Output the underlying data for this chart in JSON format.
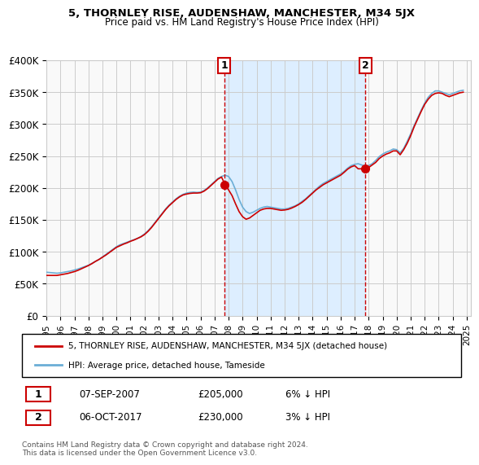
{
  "title": "5, THORNLEY RISE, AUDENSHAW, MANCHESTER, M34 5JX",
  "subtitle": "Price paid vs. HM Land Registry's House Price Index (HPI)",
  "xlabel": "",
  "ylabel": "",
  "ylim": [
    0,
    400000
  ],
  "yticks": [
    0,
    50000,
    100000,
    150000,
    200000,
    250000,
    300000,
    350000,
    400000
  ],
  "ytick_labels": [
    "£0",
    "£50K",
    "£100K",
    "£150K",
    "£200K",
    "£250K",
    "£300K",
    "£350K",
    "£400K"
  ],
  "xlim_start": 1995.0,
  "xlim_end": 2025.3,
  "xtick_years": [
    1995,
    1996,
    1997,
    1998,
    1999,
    2000,
    2001,
    2002,
    2003,
    2004,
    2005,
    2006,
    2007,
    2008,
    2009,
    2010,
    2011,
    2012,
    2013,
    2014,
    2015,
    2016,
    2017,
    2018,
    2019,
    2020,
    2021,
    2022,
    2023,
    2024,
    2025
  ],
  "sale1_x": 2007.68,
  "sale1_y": 205000,
  "sale1_label": "1",
  "sale1_date": "07-SEP-2007",
  "sale1_price": "£205,000",
  "sale1_hpi": "6% ↓ HPI",
  "sale2_x": 2017.76,
  "sale2_y": 230000,
  "sale2_label": "2",
  "sale2_date": "06-OCT-2017",
  "sale2_price": "£230,000",
  "sale2_hpi": "3% ↓ HPI",
  "hpi_color": "#6baed6",
  "sale_color": "#cc0000",
  "shade_color": "#ddeeff",
  "legend_label_red": "5, THORNLEY RISE, AUDENSHAW, MANCHESTER, M34 5JX (detached house)",
  "legend_label_blue": "HPI: Average price, detached house, Tameside",
  "footer": "Contains HM Land Registry data © Crown copyright and database right 2024.\nThis data is licensed under the Open Government Licence v3.0.",
  "background_color": "#ffffff",
  "plot_bg_color": "#f9f9f9",
  "grid_color": "#cccccc",
  "hpi_data_x": [
    1995.0,
    1995.25,
    1995.5,
    1995.75,
    1996.0,
    1996.25,
    1996.5,
    1996.75,
    1997.0,
    1997.25,
    1997.5,
    1997.75,
    1998.0,
    1998.25,
    1998.5,
    1998.75,
    1999.0,
    1999.25,
    1999.5,
    1999.75,
    2000.0,
    2000.25,
    2000.5,
    2000.75,
    2001.0,
    2001.25,
    2001.5,
    2001.75,
    2002.0,
    2002.25,
    2002.5,
    2002.75,
    2003.0,
    2003.25,
    2003.5,
    2003.75,
    2004.0,
    2004.25,
    2004.5,
    2004.75,
    2005.0,
    2005.25,
    2005.5,
    2005.75,
    2006.0,
    2006.25,
    2006.5,
    2006.75,
    2007.0,
    2007.25,
    2007.5,
    2007.75,
    2008.0,
    2008.25,
    2008.5,
    2008.75,
    2009.0,
    2009.25,
    2009.5,
    2009.75,
    2010.0,
    2010.25,
    2010.5,
    2010.75,
    2011.0,
    2011.25,
    2011.5,
    2011.75,
    2012.0,
    2012.25,
    2012.5,
    2012.75,
    2013.0,
    2013.25,
    2013.5,
    2013.75,
    2014.0,
    2014.25,
    2014.5,
    2014.75,
    2015.0,
    2015.25,
    2015.5,
    2015.75,
    2016.0,
    2016.25,
    2016.5,
    2016.75,
    2017.0,
    2017.25,
    2017.5,
    2017.75,
    2018.0,
    2018.25,
    2018.5,
    2018.75,
    2019.0,
    2019.25,
    2019.5,
    2019.75,
    2020.0,
    2020.25,
    2020.5,
    2020.75,
    2021.0,
    2021.25,
    2021.5,
    2021.75,
    2022.0,
    2022.25,
    2022.5,
    2022.75,
    2023.0,
    2023.25,
    2023.5,
    2023.75,
    2024.0,
    2024.25,
    2024.5,
    2024.75
  ],
  "hpi_data_y": [
    68000,
    67500,
    67000,
    66500,
    67000,
    68000,
    69000,
    70000,
    71500,
    73000,
    75000,
    77000,
    79000,
    82000,
    85000,
    88000,
    92000,
    96000,
    100000,
    104000,
    108000,
    111000,
    113000,
    115000,
    117000,
    119000,
    121000,
    124000,
    128000,
    133000,
    139000,
    146000,
    153000,
    160000,
    167000,
    173000,
    178000,
    183000,
    187000,
    190000,
    192000,
    193000,
    193500,
    193000,
    193500,
    196000,
    200000,
    205000,
    210000,
    215000,
    218000,
    220000,
    218000,
    210000,
    197000,
    182000,
    170000,
    163000,
    160000,
    162000,
    165000,
    168000,
    170000,
    171000,
    170000,
    169000,
    168000,
    167000,
    167000,
    168000,
    170000,
    172000,
    175000,
    179000,
    183000,
    188000,
    193000,
    198000,
    203000,
    207000,
    210000,
    213000,
    216000,
    219000,
    222000,
    226000,
    231000,
    235000,
    237000,
    238000,
    236000,
    234000,
    235000,
    238000,
    243000,
    249000,
    253000,
    256000,
    258000,
    261000,
    260000,
    255000,
    262000,
    273000,
    285000,
    298000,
    310000,
    322000,
    333000,
    342000,
    348000,
    352000,
    352000,
    350000,
    348000,
    346000,
    348000,
    350000,
    352000,
    353000
  ],
  "red_data_x": [
    1995.0,
    1995.25,
    1995.5,
    1995.75,
    1996.0,
    1996.25,
    1996.5,
    1996.75,
    1997.0,
    1997.25,
    1997.5,
    1997.75,
    1998.0,
    1998.25,
    1998.5,
    1998.75,
    1999.0,
    1999.25,
    1999.5,
    1999.75,
    2000.0,
    2000.25,
    2000.5,
    2000.75,
    2001.0,
    2001.25,
    2001.5,
    2001.75,
    2002.0,
    2002.25,
    2002.5,
    2002.75,
    2003.0,
    2003.25,
    2003.5,
    2003.75,
    2004.0,
    2004.25,
    2004.5,
    2004.75,
    2005.0,
    2005.25,
    2005.5,
    2005.75,
    2006.0,
    2006.25,
    2006.5,
    2006.75,
    2007.0,
    2007.25,
    2007.5,
    2007.75,
    2008.0,
    2008.25,
    2008.5,
    2008.75,
    2009.0,
    2009.25,
    2009.5,
    2009.75,
    2010.0,
    2010.25,
    2010.5,
    2010.75,
    2011.0,
    2011.25,
    2011.5,
    2011.75,
    2012.0,
    2012.25,
    2012.5,
    2012.75,
    2013.0,
    2013.25,
    2013.5,
    2013.75,
    2014.0,
    2014.25,
    2014.5,
    2014.75,
    2015.0,
    2015.25,
    2015.5,
    2015.75,
    2016.0,
    2016.25,
    2016.5,
    2016.75,
    2017.0,
    2017.25,
    2017.5,
    2017.75,
    2018.0,
    2018.25,
    2018.5,
    2018.75,
    2019.0,
    2019.25,
    2019.5,
    2019.75,
    2020.0,
    2020.25,
    2020.5,
    2020.75,
    2021.0,
    2021.25,
    2021.5,
    2021.75,
    2022.0,
    2022.25,
    2022.5,
    2022.75,
    2023.0,
    2023.25,
    2023.5,
    2023.75,
    2024.0,
    2024.25,
    2024.5,
    2024.75
  ],
  "red_data_y": [
    63000,
    63000,
    63000,
    63000,
    64000,
    65000,
    66000,
    67500,
    69000,
    71000,
    73500,
    76000,
    78500,
    81500,
    85000,
    88000,
    91500,
    95000,
    99000,
    103000,
    107000,
    109500,
    112000,
    114000,
    116500,
    118500,
    121000,
    123500,
    127000,
    132000,
    138000,
    145000,
    152000,
    159000,
    166000,
    172000,
    177000,
    182000,
    186000,
    189000,
    190500,
    191500,
    192000,
    192000,
    192500,
    195000,
    199000,
    204000,
    209000,
    214000,
    217000,
    205000,
    197000,
    188000,
    175000,
    163000,
    155000,
    151000,
    153000,
    157000,
    161000,
    165000,
    167000,
    168000,
    168000,
    167000,
    166000,
    165000,
    165500,
    166500,
    168500,
    171000,
    174000,
    177500,
    182000,
    187000,
    192000,
    197000,
    201000,
    205000,
    208000,
    211000,
    214000,
    217000,
    220000,
    224500,
    229500,
    233000,
    235000,
    230000,
    230000,
    230000,
    232000,
    236000,
    240000,
    246000,
    250000,
    253000,
    255000,
    258000,
    258000,
    252000,
    260000,
    270000,
    282000,
    296000,
    308000,
    320000,
    331000,
    339000,
    345000,
    348000,
    349000,
    348000,
    345000,
    343000,
    345000,
    347000,
    349000,
    350000
  ]
}
